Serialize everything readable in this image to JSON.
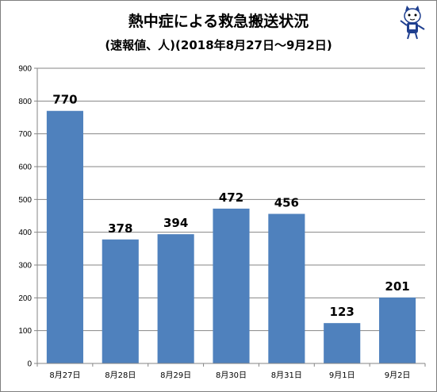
{
  "header": {
    "title": "熱中症による救急搬送状況",
    "subtitle": "(速報値、人)(2018年8月27日〜9月2日)"
  },
  "mascot": {
    "icon": "cartoon-mascot-icon"
  },
  "colors": {
    "bar": "#4f81bd",
    "grid": "#868686",
    "axis": "#868686"
  },
  "chart_data": {
    "type": "bar",
    "title": "熱中症による救急搬送状況",
    "subtitle": "(速報値、人)(2018年8月27日〜9月2日)",
    "categories": [
      "8月27日",
      "8月28日",
      "8月29日",
      "8月30日",
      "8月31日",
      "9月1日",
      "9月2日"
    ],
    "values": [
      770,
      378,
      394,
      472,
      456,
      123,
      201
    ],
    "data_labels": [
      "770",
      "378",
      "394",
      "472",
      "456",
      "123",
      "201"
    ],
    "ylim": [
      0,
      900
    ],
    "yticks": [
      "0",
      "100",
      "200",
      "300",
      "400",
      "500",
      "600",
      "700",
      "800",
      "900"
    ],
    "grid": true,
    "legend": "none",
    "xlabel": "",
    "ylabel": ""
  }
}
